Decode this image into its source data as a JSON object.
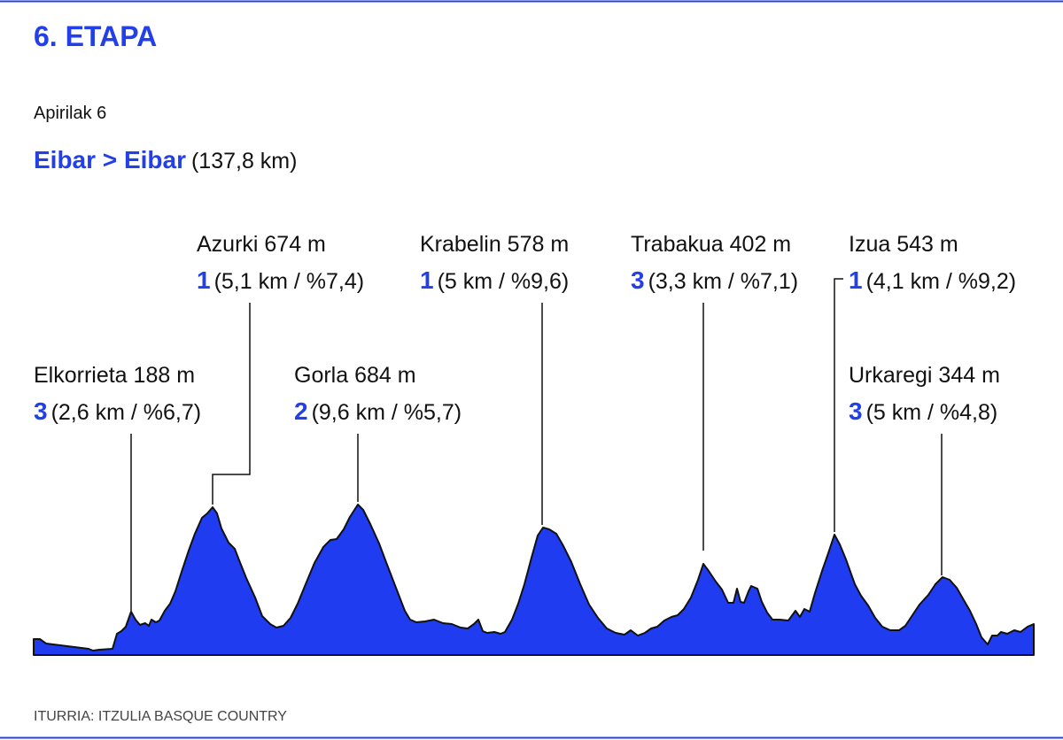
{
  "header": {
    "title": "6. ETAPA",
    "date": "Apirilak 6",
    "route": "Eibar > Eibar",
    "distance": "(137,8 km)"
  },
  "climbs": [
    {
      "name": "Elkorrieta 188 m",
      "category": "3",
      "detail": "(2,6 km / %6,7)"
    },
    {
      "name": "Azurki 674 m",
      "category": "1",
      "detail": "(5,1 km / %7,4)"
    },
    {
      "name": "Gorla 684 m",
      "category": "2",
      "detail": "(9,6 km / %5,7)"
    },
    {
      "name": "Krabelin 578 m",
      "category": "1",
      "detail": "(5 km / %9,6)"
    },
    {
      "name": "Trabakua 402 m",
      "category": "3",
      "detail": "(3,3 km / %7,1)"
    },
    {
      "name": "Izua 543 m",
      "category": "1",
      "detail": "(4,1 km / %9,2)"
    },
    {
      "name": "Urkaregi 344 m",
      "category": "3",
      "detail": "(5 km / %4,8)"
    }
  ],
  "footer": {
    "source": "ITURRIA: ITZULIA BASQUE COUNTRY"
  }
}
